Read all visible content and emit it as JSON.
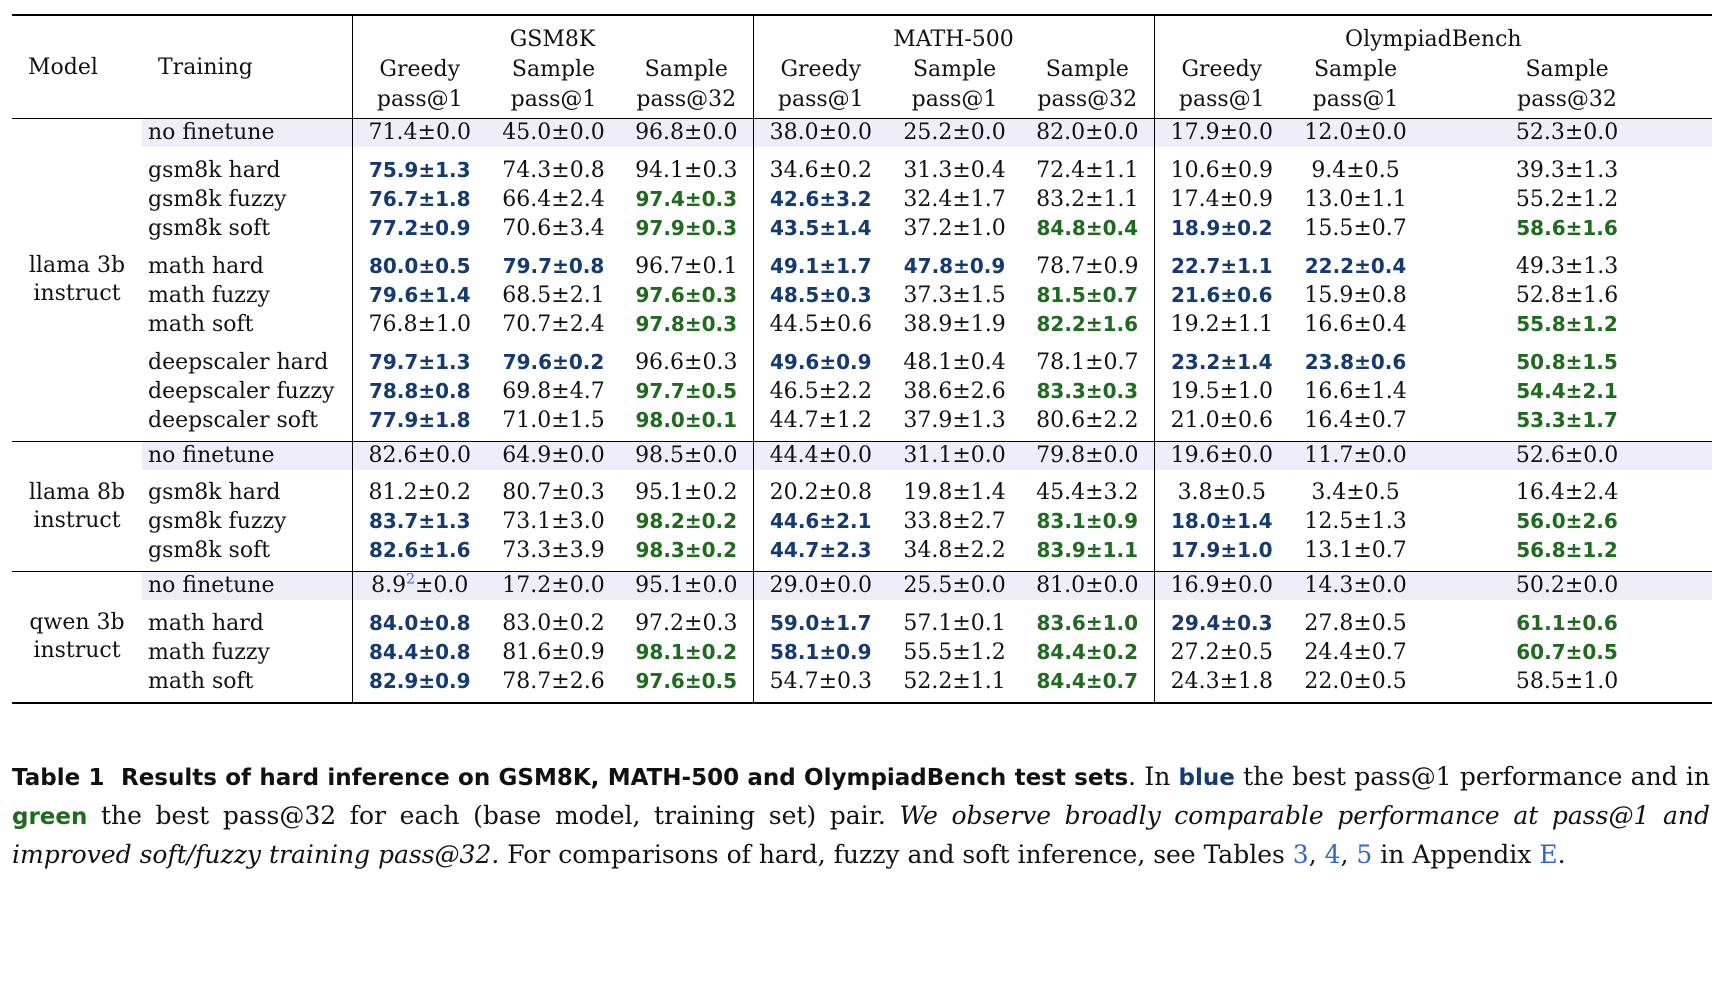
{
  "table": {
    "header": {
      "model": "Model",
      "training": "Training",
      "groups": [
        "GSM8K",
        "MATH-500",
        "OlympiadBench"
      ],
      "subcols": [
        {
          "l1": "Greedy",
          "l2": "pass@1"
        },
        {
          "l1": "Sample",
          "l2": "pass@1"
        },
        {
          "l1": "Sample",
          "l2": "pass@32"
        }
      ]
    },
    "blocks": [
      {
        "model_l1": "llama 3b",
        "model_l2": "instruct",
        "base": {
          "training": "no finetune",
          "cells": [
            [
              "71.4±0.0",
              ""
            ],
            [
              "45.0±0.0",
              ""
            ],
            [
              "96.8±0.0",
              ""
            ],
            [
              "38.0±0.0",
              ""
            ],
            [
              "25.2±0.0",
              ""
            ],
            [
              "82.0±0.0",
              ""
            ],
            [
              "17.9±0.0",
              ""
            ],
            [
              "12.0±0.0",
              ""
            ],
            [
              "52.3±0.0",
              ""
            ]
          ]
        },
        "groups": [
          [
            {
              "training": "gsm8k hard",
              "cells": [
                [
                  "75.9±1.3",
                  "b"
                ],
                [
                  "74.3±0.8",
                  ""
                ],
                [
                  "94.1±0.3",
                  ""
                ],
                [
                  "34.6±0.2",
                  ""
                ],
                [
                  "31.3±0.4",
                  ""
                ],
                [
                  "72.4±1.1",
                  ""
                ],
                [
                  "10.6±0.9",
                  ""
                ],
                [
                  "9.4±0.5",
                  ""
                ],
                [
                  "39.3±1.3",
                  ""
                ]
              ]
            },
            {
              "training": "gsm8k fuzzy",
              "cells": [
                [
                  "76.7±1.8",
                  "b"
                ],
                [
                  "66.4±2.4",
                  ""
                ],
                [
                  "97.4±0.3",
                  "g"
                ],
                [
                  "42.6±3.2",
                  "b"
                ],
                [
                  "32.4±1.7",
                  ""
                ],
                [
                  "83.2±1.1",
                  ""
                ],
                [
                  "17.4±0.9",
                  ""
                ],
                [
                  "13.0±1.1",
                  ""
                ],
                [
                  "55.2±1.2",
                  ""
                ]
              ]
            },
            {
              "training": "gsm8k soft",
              "cells": [
                [
                  "77.2±0.9",
                  "b"
                ],
                [
                  "70.6±3.4",
                  ""
                ],
                [
                  "97.9±0.3",
                  "g"
                ],
                [
                  "43.5±1.4",
                  "b"
                ],
                [
                  "37.2±1.0",
                  ""
                ],
                [
                  "84.8±0.4",
                  "g"
                ],
                [
                  "18.9±0.2",
                  "b"
                ],
                [
                  "15.5±0.7",
                  ""
                ],
                [
                  "58.6±1.6",
                  "g"
                ]
              ]
            }
          ],
          [
            {
              "training": "math hard",
              "cells": [
                [
                  "80.0±0.5",
                  "b"
                ],
                [
                  "79.7±0.8",
                  "b"
                ],
                [
                  "96.7±0.1",
                  ""
                ],
                [
                  "49.1±1.7",
                  "b"
                ],
                [
                  "47.8±0.9",
                  "b"
                ],
                [
                  "78.7±0.9",
                  ""
                ],
                [
                  "22.7±1.1",
                  "b"
                ],
                [
                  "22.2±0.4",
                  "b"
                ],
                [
                  "49.3±1.3",
                  ""
                ]
              ]
            },
            {
              "training": "math fuzzy",
              "cells": [
                [
                  "79.6±1.4",
                  "b"
                ],
                [
                  "68.5±2.1",
                  ""
                ],
                [
                  "97.6±0.3",
                  "g"
                ],
                [
                  "48.5±0.3",
                  "b"
                ],
                [
                  "37.3±1.5",
                  ""
                ],
                [
                  "81.5±0.7",
                  "g"
                ],
                [
                  "21.6±0.6",
                  "b"
                ],
                [
                  "15.9±0.8",
                  ""
                ],
                [
                  "52.8±1.6",
                  ""
                ]
              ]
            },
            {
              "training": "math soft",
              "cells": [
                [
                  "76.8±1.0",
                  ""
                ],
                [
                  "70.7±2.4",
                  ""
                ],
                [
                  "97.8±0.3",
                  "g"
                ],
                [
                  "44.5±0.6",
                  ""
                ],
                [
                  "38.9±1.9",
                  ""
                ],
                [
                  "82.2±1.6",
                  "g"
                ],
                [
                  "19.2±1.1",
                  ""
                ],
                [
                  "16.6±0.4",
                  ""
                ],
                [
                  "55.8±1.2",
                  "g"
                ]
              ]
            }
          ],
          [
            {
              "training": "deepscaler hard",
              "cells": [
                [
                  "79.7±1.3",
                  "b"
                ],
                [
                  "79.6±0.2",
                  "b"
                ],
                [
                  "96.6±0.3",
                  ""
                ],
                [
                  "49.6±0.9",
                  "b"
                ],
                [
                  "48.1±0.4",
                  ""
                ],
                [
                  "78.1±0.7",
                  ""
                ],
                [
                  "23.2±1.4",
                  "b"
                ],
                [
                  "23.8±0.6",
                  "b"
                ],
                [
                  "50.8±1.5",
                  "g"
                ]
              ]
            },
            {
              "training": "deepscaler fuzzy",
              "cells": [
                [
                  "78.8±0.8",
                  "b"
                ],
                [
                  "69.8±4.7",
                  ""
                ],
                [
                  "97.7±0.5",
                  "g"
                ],
                [
                  "46.5±2.2",
                  ""
                ],
                [
                  "38.6±2.6",
                  ""
                ],
                [
                  "83.3±0.3",
                  "g"
                ],
                [
                  "19.5±1.0",
                  ""
                ],
                [
                  "16.6±1.4",
                  ""
                ],
                [
                  "54.4±2.1",
                  "g"
                ]
              ]
            },
            {
              "training": "deepscaler soft",
              "cells": [
                [
                  "77.9±1.8",
                  "b"
                ],
                [
                  "71.0±1.5",
                  ""
                ],
                [
                  "98.0±0.1",
                  "g"
                ],
                [
                  "44.7±1.2",
                  ""
                ],
                [
                  "37.9±1.3",
                  ""
                ],
                [
                  "80.6±2.2",
                  ""
                ],
                [
                  "21.0±0.6",
                  ""
                ],
                [
                  "16.4±0.7",
                  ""
                ],
                [
                  "53.3±1.7",
                  "g"
                ]
              ]
            }
          ]
        ]
      },
      {
        "model_l1": "llama 8b",
        "model_l2": "instruct",
        "base": {
          "training": "no finetune",
          "cells": [
            [
              "82.6±0.0",
              ""
            ],
            [
              "64.9±0.0",
              ""
            ],
            [
              "98.5±0.0",
              ""
            ],
            [
              "44.4±0.0",
              ""
            ],
            [
              "31.1±0.0",
              ""
            ],
            [
              "79.8±0.0",
              ""
            ],
            [
              "19.6±0.0",
              ""
            ],
            [
              "11.7±0.0",
              ""
            ],
            [
              "52.6±0.0",
              ""
            ]
          ]
        },
        "groups": [
          [
            {
              "training": "gsm8k hard",
              "cells": [
                [
                  "81.2±0.2",
                  ""
                ],
                [
                  "80.7±0.3",
                  ""
                ],
                [
                  "95.1±0.2",
                  ""
                ],
                [
                  "20.2±0.8",
                  ""
                ],
                [
                  "19.8±1.4",
                  ""
                ],
                [
                  "45.4±3.2",
                  ""
                ],
                [
                  "3.8±0.5",
                  ""
                ],
                [
                  "3.4±0.5",
                  ""
                ],
                [
                  "16.4±2.4",
                  ""
                ]
              ]
            },
            {
              "training": "gsm8k fuzzy",
              "cells": [
                [
                  "83.7±1.3",
                  "b"
                ],
                [
                  "73.1±3.0",
                  ""
                ],
                [
                  "98.2±0.2",
                  "g"
                ],
                [
                  "44.6±2.1",
                  "b"
                ],
                [
                  "33.8±2.7",
                  ""
                ],
                [
                  "83.1±0.9",
                  "g"
                ],
                [
                  "18.0±1.4",
                  "b"
                ],
                [
                  "12.5±1.3",
                  ""
                ],
                [
                  "56.0±2.6",
                  "g"
                ]
              ]
            },
            {
              "training": "gsm8k soft",
              "cells": [
                [
                  "82.6±1.6",
                  "b"
                ],
                [
                  "73.3±3.9",
                  ""
                ],
                [
                  "98.3±0.2",
                  "g"
                ],
                [
                  "44.7±2.3",
                  "b"
                ],
                [
                  "34.8±2.2",
                  ""
                ],
                [
                  "83.9±1.1",
                  "g"
                ],
                [
                  "17.9±1.0",
                  "b"
                ],
                [
                  "13.1±0.7",
                  ""
                ],
                [
                  "56.8±1.2",
                  "g"
                ]
              ]
            }
          ]
        ]
      },
      {
        "model_l1": "qwen 3b",
        "model_l2": "instruct",
        "base": {
          "training": "no finetune",
          "cells": [
            [
              "8.9",
              ""
            ],
            [
              "17.2±0.0",
              ""
            ],
            [
              "95.1±0.0",
              ""
            ],
            [
              "29.0±0.0",
              ""
            ],
            [
              "25.5±0.0",
              ""
            ],
            [
              "81.0±0.0",
              ""
            ],
            [
              "16.9±0.0",
              ""
            ],
            [
              "14.3±0.0",
              ""
            ],
            [
              "50.2±0.0",
              ""
            ]
          ],
          "first_sup": "2",
          "first_rest": "±0.0"
        },
        "groups": [
          [
            {
              "training": "math hard",
              "cells": [
                [
                  "84.0±0.8",
                  "b"
                ],
                [
                  "83.0±0.2",
                  ""
                ],
                [
                  "97.2±0.3",
                  ""
                ],
                [
                  "59.0±1.7",
                  "b"
                ],
                [
                  "57.1±0.1",
                  ""
                ],
                [
                  "83.6±1.0",
                  "g"
                ],
                [
                  "29.4±0.3",
                  "b"
                ],
                [
                  "27.8±0.5",
                  ""
                ],
                [
                  "61.1±0.6",
                  "g"
                ]
              ]
            },
            {
              "training": "math fuzzy",
              "cells": [
                [
                  "84.4±0.8",
                  "b"
                ],
                [
                  "81.6±0.9",
                  ""
                ],
                [
                  "98.1±0.2",
                  "g"
                ],
                [
                  "58.1±0.9",
                  "b"
                ],
                [
                  "55.5±1.2",
                  ""
                ],
                [
                  "84.4±0.2",
                  "g"
                ],
                [
                  "27.2±0.5",
                  ""
                ],
                [
                  "24.4±0.7",
                  ""
                ],
                [
                  "60.7±0.5",
                  "g"
                ]
              ]
            },
            {
              "training": "math soft",
              "cells": [
                [
                  "82.9±0.9",
                  "b"
                ],
                [
                  "78.7±2.6",
                  ""
                ],
                [
                  "97.6±0.5",
                  "g"
                ],
                [
                  "54.7±0.3",
                  ""
                ],
                [
                  "52.2±1.1",
                  ""
                ],
                [
                  "84.4±0.7",
                  "g"
                ],
                [
                  "24.3±1.8",
                  ""
                ],
                [
                  "22.0±0.5",
                  ""
                ],
                [
                  "58.5±1.0",
                  ""
                ]
              ]
            }
          ]
        ]
      }
    ]
  },
  "caption": {
    "label": "Table 1",
    "title": "Results of hard inference on GSM8K, MATH-500 and OlympiadBench test sets",
    "text1": ". In ",
    "blue_word": "blue",
    "text2": " the best pass@1 performance and in ",
    "green_word": "green",
    "text3": " the best pass@32 for each (base model, training set) pair. ",
    "italic": "We observe broadly comparable performance at pass@1 and improved soft/fuzzy training pass@32.",
    "text4": " For comparisons of hard, fuzzy and soft inference, see Tables ",
    "ref1": "3",
    "sep1": ", ",
    "ref2": "4",
    "sep2": ", ",
    "ref3": "5",
    "text5": " in Appendix ",
    "ref4": "E",
    "text6": "."
  },
  "colors": {
    "blue": "#143a73",
    "green": "#1e6b1e",
    "link": "#2f67c9",
    "shade": "#f0edfb"
  }
}
